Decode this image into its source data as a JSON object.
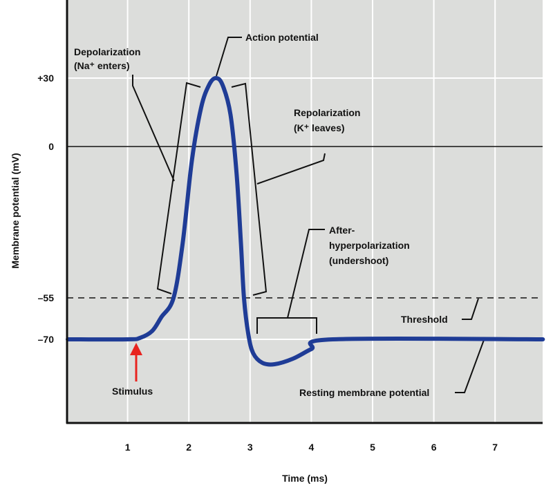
{
  "chart_data": {
    "type": "line",
    "title": "",
    "xlabel": "Time (ms)",
    "ylabel": "Membrane potential (mV)",
    "xlim": [
      0,
      7.8
    ],
    "x_ticks": [
      1,
      2,
      3,
      4,
      5,
      6,
      7
    ],
    "x_tick_labels": [
      "1",
      "2",
      "3",
      "4",
      "5",
      "6",
      "7"
    ],
    "y_ticks": [
      30,
      0,
      -55,
      -70
    ],
    "y_tick_labels": [
      "+30",
      "0",
      "–55",
      "–70"
    ],
    "grid": true,
    "series": [
      {
        "name": "Membrane potential",
        "color": "#1f3c96",
        "x": [
          0,
          1.0,
          1.2,
          1.4,
          1.55,
          1.75,
          1.9,
          2.05,
          2.2,
          2.33,
          2.44,
          2.55,
          2.68,
          2.78,
          2.85,
          2.9,
          2.97,
          3.05,
          3.2,
          3.4,
          3.7,
          4.0,
          4.35,
          7.78
        ],
        "y": [
          -70,
          -70,
          -69.5,
          -67,
          -62,
          -55,
          -35,
          -5,
          17,
          27,
          30,
          27,
          14,
          -10,
          -35,
          -55,
          -68,
          -75,
          -78.5,
          -79,
          -77,
          -73.5,
          -70,
          -70
        ]
      }
    ],
    "reference_lines": {
      "zero": 0,
      "threshold": -55
    },
    "annotations": {
      "action_potential": "Action potential",
      "depolarization": "Depolarization",
      "depolarization_sub": "(Na⁺ enters)",
      "repolarization": "Repolarization",
      "repolarization_sub": "(K⁺ leaves)",
      "after_1": "After-",
      "after_2": "hyperpolarization",
      "after_3": "(undershoot)",
      "threshold": "Threshold",
      "resting": "Resting membrane potential",
      "stimulus": "Stimulus"
    },
    "colors": {
      "background": "#dcdddb",
      "curve": "#1f3c96",
      "stimulus_arrow": "#e8231f"
    }
  }
}
